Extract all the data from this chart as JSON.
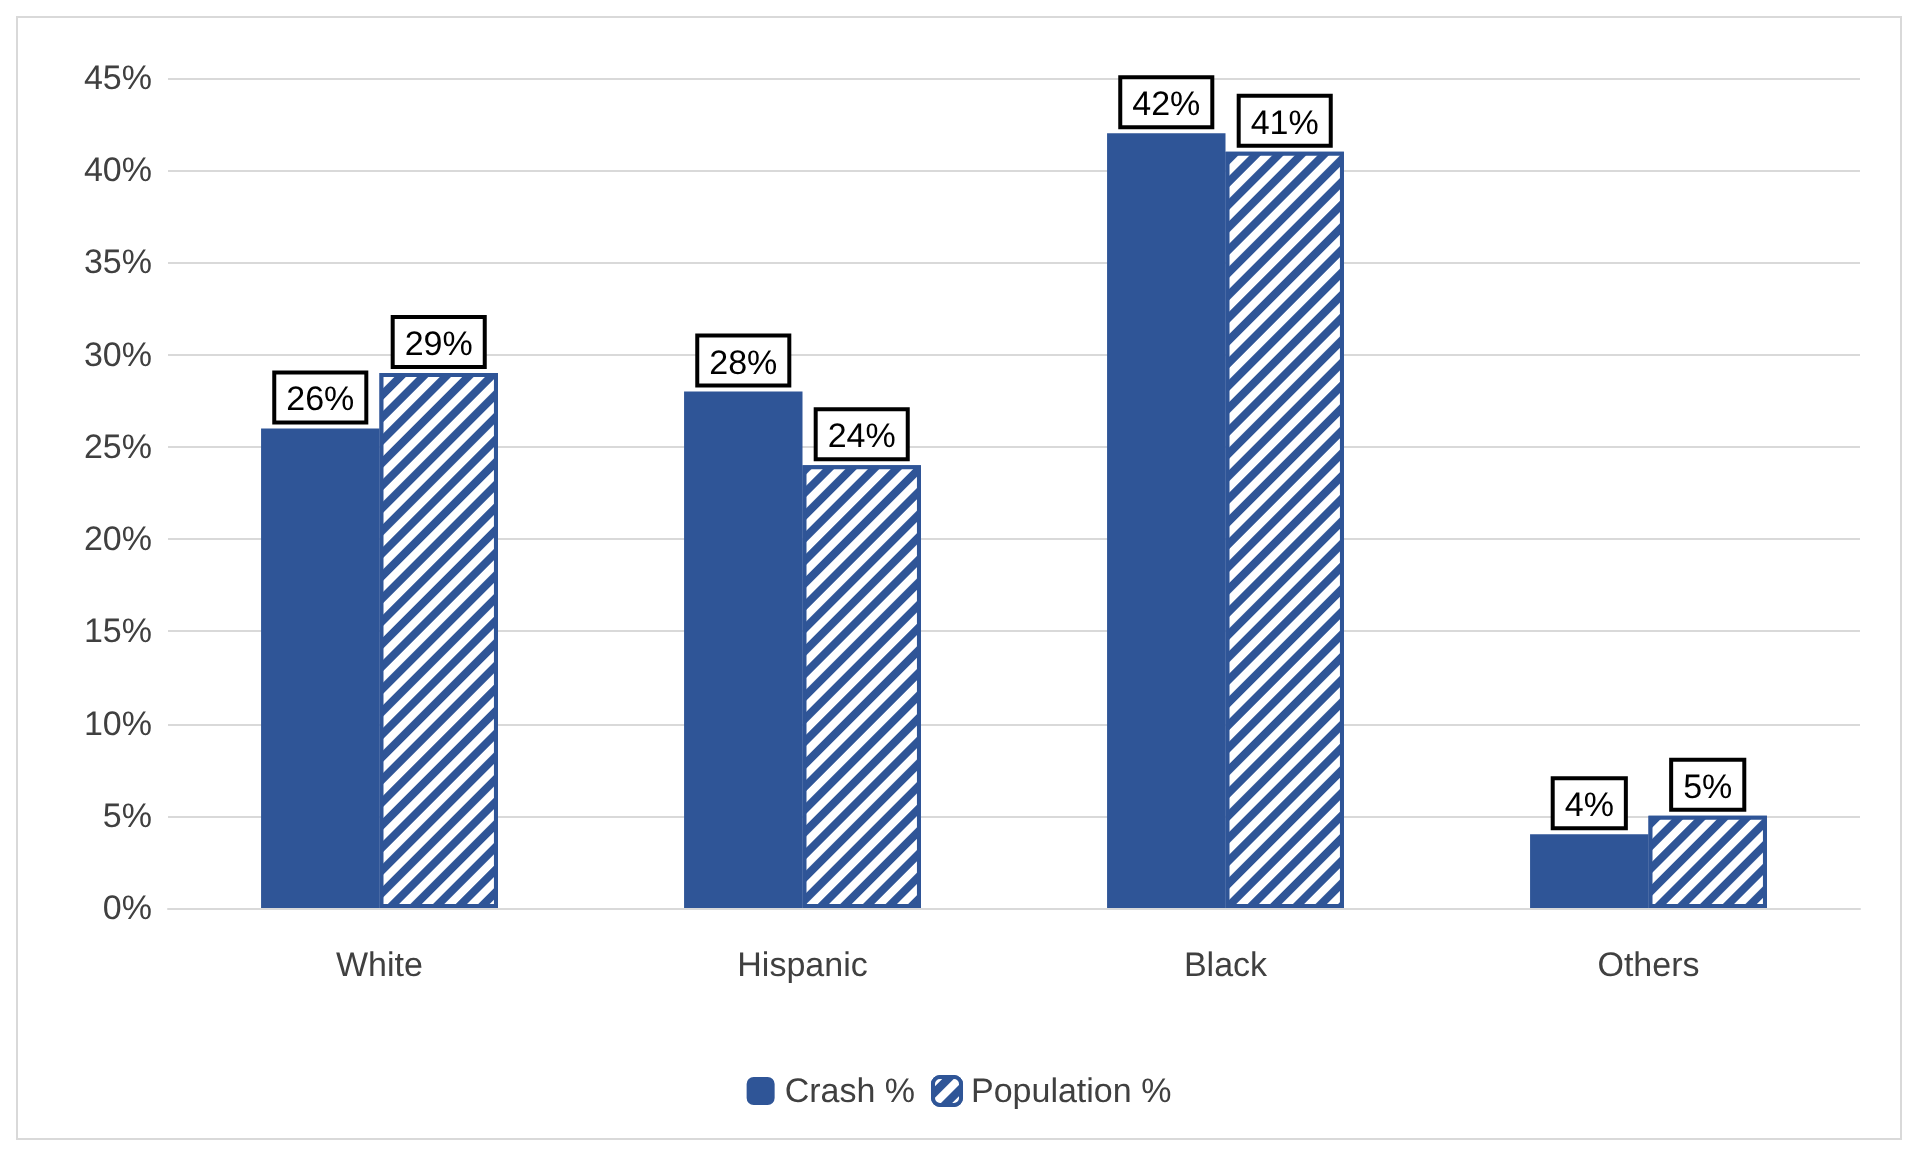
{
  "chart_data": {
    "type": "bar",
    "categories": [
      "White",
      "Hispanic",
      "Black",
      "Others"
    ],
    "series": [
      {
        "name": "Crash %",
        "color": "#2f5597",
        "values": [
          26,
          28,
          42,
          4
        ],
        "value_labels": [
          "26%",
          "28%",
          "42%",
          "4%"
        ]
      },
      {
        "name": "Population %",
        "color": "#2f5597",
        "values": [
          29,
          24,
          41,
          5
        ],
        "value_labels": [
          "29%",
          "24%",
          "41%",
          "5%"
        ]
      }
    ],
    "ylim": [
      0,
      45
    ],
    "yticks": [
      {
        "value": 0,
        "label": "0%"
      },
      {
        "value": 5,
        "label": "5%"
      },
      {
        "value": 10,
        "label": "10%"
      },
      {
        "value": 15,
        "label": "15%"
      },
      {
        "value": 20,
        "label": "20%"
      },
      {
        "value": 25,
        "label": "25%"
      },
      {
        "value": 30,
        "label": "30%"
      },
      {
        "value": 35,
        "label": "35%"
      },
      {
        "value": 40,
        "label": "40%"
      },
      {
        "value": 45,
        "label": "45%"
      }
    ],
    "grid": "y",
    "legend": "bottom"
  }
}
